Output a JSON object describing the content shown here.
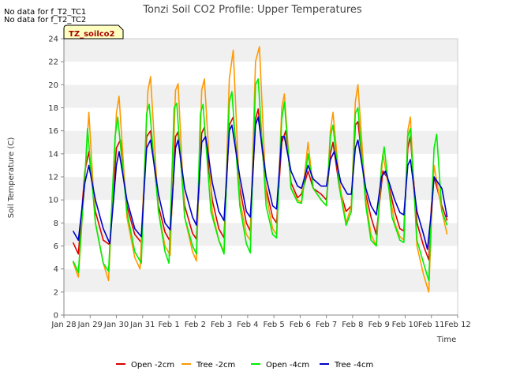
{
  "chart_data": {
    "type": "line",
    "title": "Tonzi Soil CO2 Profile: Upper Temperatures",
    "xlabel": "Time",
    "ylabel": "Soil Temperature (C)",
    "ylim": [
      0,
      24
    ],
    "xlim": [
      0,
      15
    ],
    "y_ticks": [
      0,
      2,
      4,
      6,
      8,
      10,
      12,
      14,
      16,
      18,
      20,
      22,
      24
    ],
    "x_ticks": [
      {
        "x": 0,
        "label": "Jan 28"
      },
      {
        "x": 1,
        "label": "Jan 29"
      },
      {
        "x": 2,
        "label": "Jan 30"
      },
      {
        "x": 3,
        "label": "Jan 31"
      },
      {
        "x": 4,
        "label": "Feb 1"
      },
      {
        "x": 5,
        "label": "Feb 2"
      },
      {
        "x": 6,
        "label": "Feb 3"
      },
      {
        "x": 7,
        "label": "Feb 4"
      },
      {
        "x": 8,
        "label": "Feb 5"
      },
      {
        "x": 9,
        "label": "Feb 6"
      },
      {
        "x": 10,
        "label": "Feb 7"
      },
      {
        "x": 11,
        "label": "Feb 8"
      },
      {
        "x": 12,
        "label": "Feb 9"
      },
      {
        "x": 13,
        "label": "Feb 10"
      },
      {
        "x": 14,
        "label": "Feb 11"
      },
      {
        "x": 15,
        "label": "Feb 12"
      }
    ],
    "grid": "horizontal bands",
    "legend_position": "bottom",
    "no_data_messages": [
      "No data for f_T2_TC1",
      "No data for f_T2_TC2"
    ],
    "site_label": "TZ_soilco2",
    "series": [
      {
        "name": "Open -2cm",
        "color": "#dd0000",
        "points": [
          [
            0.35,
            6.3
          ],
          [
            0.55,
            5.3
          ],
          [
            0.8,
            12.5
          ],
          [
            0.95,
            14.2
          ],
          [
            1.2,
            9
          ],
          [
            1.5,
            6.5
          ],
          [
            1.75,
            6.1
          ],
          [
            2.0,
            14.5
          ],
          [
            2.15,
            15.2
          ],
          [
            2.4,
            9.5
          ],
          [
            2.7,
            7.0
          ],
          [
            2.95,
            6.3
          ],
          [
            3.15,
            15.5
          ],
          [
            3.3,
            16.0
          ],
          [
            3.6,
            9.5
          ],
          [
            3.85,
            7.2
          ],
          [
            4.05,
            6.4
          ],
          [
            4.25,
            15.5
          ],
          [
            4.35,
            15.9
          ],
          [
            4.6,
            9.5
          ],
          [
            4.9,
            7.1
          ],
          [
            5.05,
            6.6
          ],
          [
            5.25,
            15.8
          ],
          [
            5.35,
            16.3
          ],
          [
            5.65,
            10.0
          ],
          [
            5.9,
            7.5
          ],
          [
            6.1,
            6.7
          ],
          [
            6.3,
            16.5
          ],
          [
            6.45,
            17.2
          ],
          [
            6.7,
            11
          ],
          [
            6.95,
            8.0
          ],
          [
            7.1,
            7.3
          ],
          [
            7.3,
            17.0
          ],
          [
            7.4,
            17.9
          ],
          [
            7.7,
            11
          ],
          [
            7.95,
            8.5
          ],
          [
            8.1,
            8.0
          ],
          [
            8.3,
            15.0
          ],
          [
            8.45,
            16.0
          ],
          [
            8.65,
            11.5
          ],
          [
            8.9,
            10.2
          ],
          [
            9.05,
            10.5
          ],
          [
            9.3,
            12.5
          ],
          [
            9.5,
            11.0
          ],
          [
            9.8,
            10.5
          ],
          [
            10.0,
            10.0
          ],
          [
            10.15,
            14.0
          ],
          [
            10.25,
            15.0
          ],
          [
            10.5,
            11.0
          ],
          [
            10.75,
            9.0
          ],
          [
            10.95,
            9.5
          ],
          [
            11.1,
            16.5
          ],
          [
            11.2,
            16.8
          ],
          [
            11.5,
            10.5
          ],
          [
            11.7,
            8.5
          ],
          [
            11.9,
            7.0
          ],
          [
            12.15,
            12.5
          ],
          [
            12.3,
            12.0
          ],
          [
            12.6,
            9.0
          ],
          [
            12.8,
            7.5
          ],
          [
            12.95,
            7.3
          ],
          [
            13.1,
            14.5
          ],
          [
            13.2,
            15.5
          ],
          [
            13.45,
            8.0
          ],
          [
            13.7,
            6.0
          ],
          [
            13.9,
            4.8
          ],
          [
            14.0,
            9.5
          ],
          [
            14.1,
            12.0
          ],
          [
            14.4,
            9.5
          ],
          [
            14.6,
            8.2
          ]
        ]
      },
      {
        "name": "Tree -2cm",
        "color": "#ff9900",
        "points": [
          [
            0.35,
            4.6
          ],
          [
            0.55,
            3.3
          ],
          [
            0.8,
            12.0
          ],
          [
            0.95,
            17.6
          ],
          [
            1.2,
            8.0
          ],
          [
            1.5,
            4.5
          ],
          [
            1.7,
            3.0
          ],
          [
            2.0,
            17.5
          ],
          [
            2.1,
            19.0
          ],
          [
            2.4,
            8.5
          ],
          [
            2.7,
            5.0
          ],
          [
            2.9,
            4.0
          ],
          [
            3.2,
            19.5
          ],
          [
            3.3,
            20.7
          ],
          [
            3.6,
            9.0
          ],
          [
            3.85,
            6.0
          ],
          [
            4.05,
            5.2
          ],
          [
            4.25,
            19.5
          ],
          [
            4.35,
            20.1
          ],
          [
            4.6,
            8.5
          ],
          [
            4.9,
            5.5
          ],
          [
            5.05,
            4.7
          ],
          [
            5.25,
            19.5
          ],
          [
            5.35,
            20.5
          ],
          [
            5.65,
            9.0
          ],
          [
            5.9,
            6.5
          ],
          [
            6.1,
            5.5
          ],
          [
            6.3,
            20.5
          ],
          [
            6.45,
            23.0
          ],
          [
            6.7,
            10.0
          ],
          [
            6.95,
            7.0
          ],
          [
            7.1,
            6.5
          ],
          [
            7.3,
            22.0
          ],
          [
            7.45,
            23.3
          ],
          [
            7.7,
            10.5
          ],
          [
            7.95,
            7.5
          ],
          [
            8.1,
            7.0
          ],
          [
            8.3,
            18.0
          ],
          [
            8.4,
            19.2
          ],
          [
            8.65,
            11.0
          ],
          [
            8.9,
            10.0
          ],
          [
            9.05,
            9.8
          ],
          [
            9.3,
            15.0
          ],
          [
            9.5,
            11.0
          ],
          [
            9.8,
            10.0
          ],
          [
            10.0,
            9.5
          ],
          [
            10.15,
            16.0
          ],
          [
            10.25,
            17.6
          ],
          [
            10.5,
            11.5
          ],
          [
            10.75,
            8.0
          ],
          [
            10.95,
            9.5
          ],
          [
            11.1,
            18.5
          ],
          [
            11.2,
            20.0
          ],
          [
            11.5,
            10.0
          ],
          [
            11.7,
            7.0
          ],
          [
            11.9,
            6.0
          ],
          [
            12.15,
            14.0
          ],
          [
            12.3,
            12.0
          ],
          [
            12.6,
            8.0
          ],
          [
            12.8,
            6.8
          ],
          [
            12.95,
            6.5
          ],
          [
            13.1,
            16.0
          ],
          [
            13.2,
            17.2
          ],
          [
            13.45,
            6.0
          ],
          [
            13.7,
            3.5
          ],
          [
            13.9,
            2.0
          ],
          [
            14.0,
            8.0
          ],
          [
            14.1,
            13.0
          ],
          [
            14.4,
            9.0
          ],
          [
            14.6,
            7.0
          ]
        ]
      },
      {
        "name": "Open -4cm",
        "color": "#00ee00",
        "points": [
          [
            0.35,
            4.7
          ],
          [
            0.55,
            3.7
          ],
          [
            0.8,
            12.0
          ],
          [
            0.9,
            16.2
          ],
          [
            1.2,
            8.0
          ],
          [
            1.5,
            4.5
          ],
          [
            1.7,
            3.8
          ],
          [
            1.95,
            15.5
          ],
          [
            2.05,
            17.2
          ],
          [
            2.4,
            9.0
          ],
          [
            2.7,
            5.5
          ],
          [
            2.95,
            4.5
          ],
          [
            3.15,
            17.5
          ],
          [
            3.25,
            18.3
          ],
          [
            3.6,
            9.0
          ],
          [
            3.85,
            5.5
          ],
          [
            4.0,
            4.5
          ],
          [
            4.2,
            18.0
          ],
          [
            4.3,
            18.4
          ],
          [
            4.6,
            8.5
          ],
          [
            4.9,
            6.0
          ],
          [
            5.05,
            5.3
          ],
          [
            5.2,
            17.5
          ],
          [
            5.3,
            18.3
          ],
          [
            5.6,
            9.0
          ],
          [
            5.9,
            6.5
          ],
          [
            6.1,
            5.3
          ],
          [
            6.3,
            18.5
          ],
          [
            6.4,
            19.4
          ],
          [
            6.7,
            9.5
          ],
          [
            6.95,
            6.2
          ],
          [
            7.1,
            5.4
          ],
          [
            7.3,
            20.0
          ],
          [
            7.4,
            20.5
          ],
          [
            7.7,
            9.5
          ],
          [
            7.95,
            7.0
          ],
          [
            8.1,
            6.7
          ],
          [
            8.3,
            17.0
          ],
          [
            8.4,
            18.5
          ],
          [
            8.65,
            11.0
          ],
          [
            8.9,
            9.8
          ],
          [
            9.05,
            9.7
          ],
          [
            9.3,
            14.0
          ],
          [
            9.5,
            11.0
          ],
          [
            9.8,
            10.0
          ],
          [
            10.0,
            9.5
          ],
          [
            10.15,
            15.5
          ],
          [
            10.25,
            16.5
          ],
          [
            10.5,
            11.0
          ],
          [
            10.75,
            7.8
          ],
          [
            10.95,
            9.0
          ],
          [
            11.1,
            17.5
          ],
          [
            11.2,
            18.0
          ],
          [
            11.5,
            9.5
          ],
          [
            11.7,
            6.5
          ],
          [
            11.9,
            6.0
          ],
          [
            12.1,
            13.0
          ],
          [
            12.2,
            14.6
          ],
          [
            12.5,
            8.5
          ],
          [
            12.8,
            6.5
          ],
          [
            12.95,
            6.3
          ],
          [
            13.1,
            15.5
          ],
          [
            13.2,
            16.2
          ],
          [
            13.45,
            6.5
          ],
          [
            13.7,
            4.5
          ],
          [
            13.9,
            3.0
          ],
          [
            14.0,
            9.0
          ],
          [
            14.1,
            14.5
          ],
          [
            14.2,
            15.7
          ],
          [
            14.4,
            9.0
          ],
          [
            14.6,
            7.8
          ]
        ]
      },
      {
        "name": "Tree -4cm",
        "color": "#0000cc",
        "points": [
          [
            0.35,
            7.3
          ],
          [
            0.55,
            6.5
          ],
          [
            0.8,
            11.5
          ],
          [
            0.95,
            13.0
          ],
          [
            1.2,
            10.0
          ],
          [
            1.5,
            7.5
          ],
          [
            1.75,
            6.2
          ],
          [
            2.0,
            13.0
          ],
          [
            2.1,
            14.2
          ],
          [
            2.4,
            10.0
          ],
          [
            2.7,
            7.5
          ],
          [
            2.95,
            6.8
          ],
          [
            3.15,
            14.5
          ],
          [
            3.3,
            15.2
          ],
          [
            3.6,
            10.5
          ],
          [
            3.85,
            8.0
          ],
          [
            4.05,
            7.4
          ],
          [
            4.25,
            14.5
          ],
          [
            4.35,
            15.2
          ],
          [
            4.6,
            11.0
          ],
          [
            4.9,
            8.5
          ],
          [
            5.05,
            7.8
          ],
          [
            5.25,
            15.0
          ],
          [
            5.4,
            15.5
          ],
          [
            5.65,
            11.5
          ],
          [
            5.9,
            9.0
          ],
          [
            6.1,
            8.2
          ],
          [
            6.3,
            16.0
          ],
          [
            6.4,
            16.5
          ],
          [
            6.7,
            12.0
          ],
          [
            6.95,
            9.0
          ],
          [
            7.1,
            8.5
          ],
          [
            7.3,
            16.5
          ],
          [
            7.4,
            17.2
          ],
          [
            7.7,
            12.0
          ],
          [
            7.95,
            9.5
          ],
          [
            8.1,
            9.2
          ],
          [
            8.3,
            15.5
          ],
          [
            8.4,
            15.5
          ],
          [
            8.65,
            12.5
          ],
          [
            8.9,
            11.2
          ],
          [
            9.05,
            11.0
          ],
          [
            9.3,
            13.0
          ],
          [
            9.5,
            11.8
          ],
          [
            9.8,
            11.2
          ],
          [
            10.0,
            11.2
          ],
          [
            10.15,
            13.5
          ],
          [
            10.3,
            14.2
          ],
          [
            10.55,
            11.5
          ],
          [
            10.8,
            10.5
          ],
          [
            10.95,
            10.5
          ],
          [
            11.1,
            14.5
          ],
          [
            11.2,
            15.2
          ],
          [
            11.5,
            11.0
          ],
          [
            11.7,
            9.5
          ],
          [
            11.9,
            8.7
          ],
          [
            12.1,
            12.0
          ],
          [
            12.25,
            12.5
          ],
          [
            12.6,
            10.0
          ],
          [
            12.8,
            8.9
          ],
          [
            12.95,
            8.7
          ],
          [
            13.1,
            13.0
          ],
          [
            13.2,
            13.5
          ],
          [
            13.45,
            9.0
          ],
          [
            13.7,
            7.0
          ],
          [
            13.85,
            5.7
          ],
          [
            14.0,
            9.0
          ],
          [
            14.1,
            12.0
          ],
          [
            14.4,
            11.0
          ],
          [
            14.6,
            8.5
          ]
        ]
      }
    ]
  }
}
